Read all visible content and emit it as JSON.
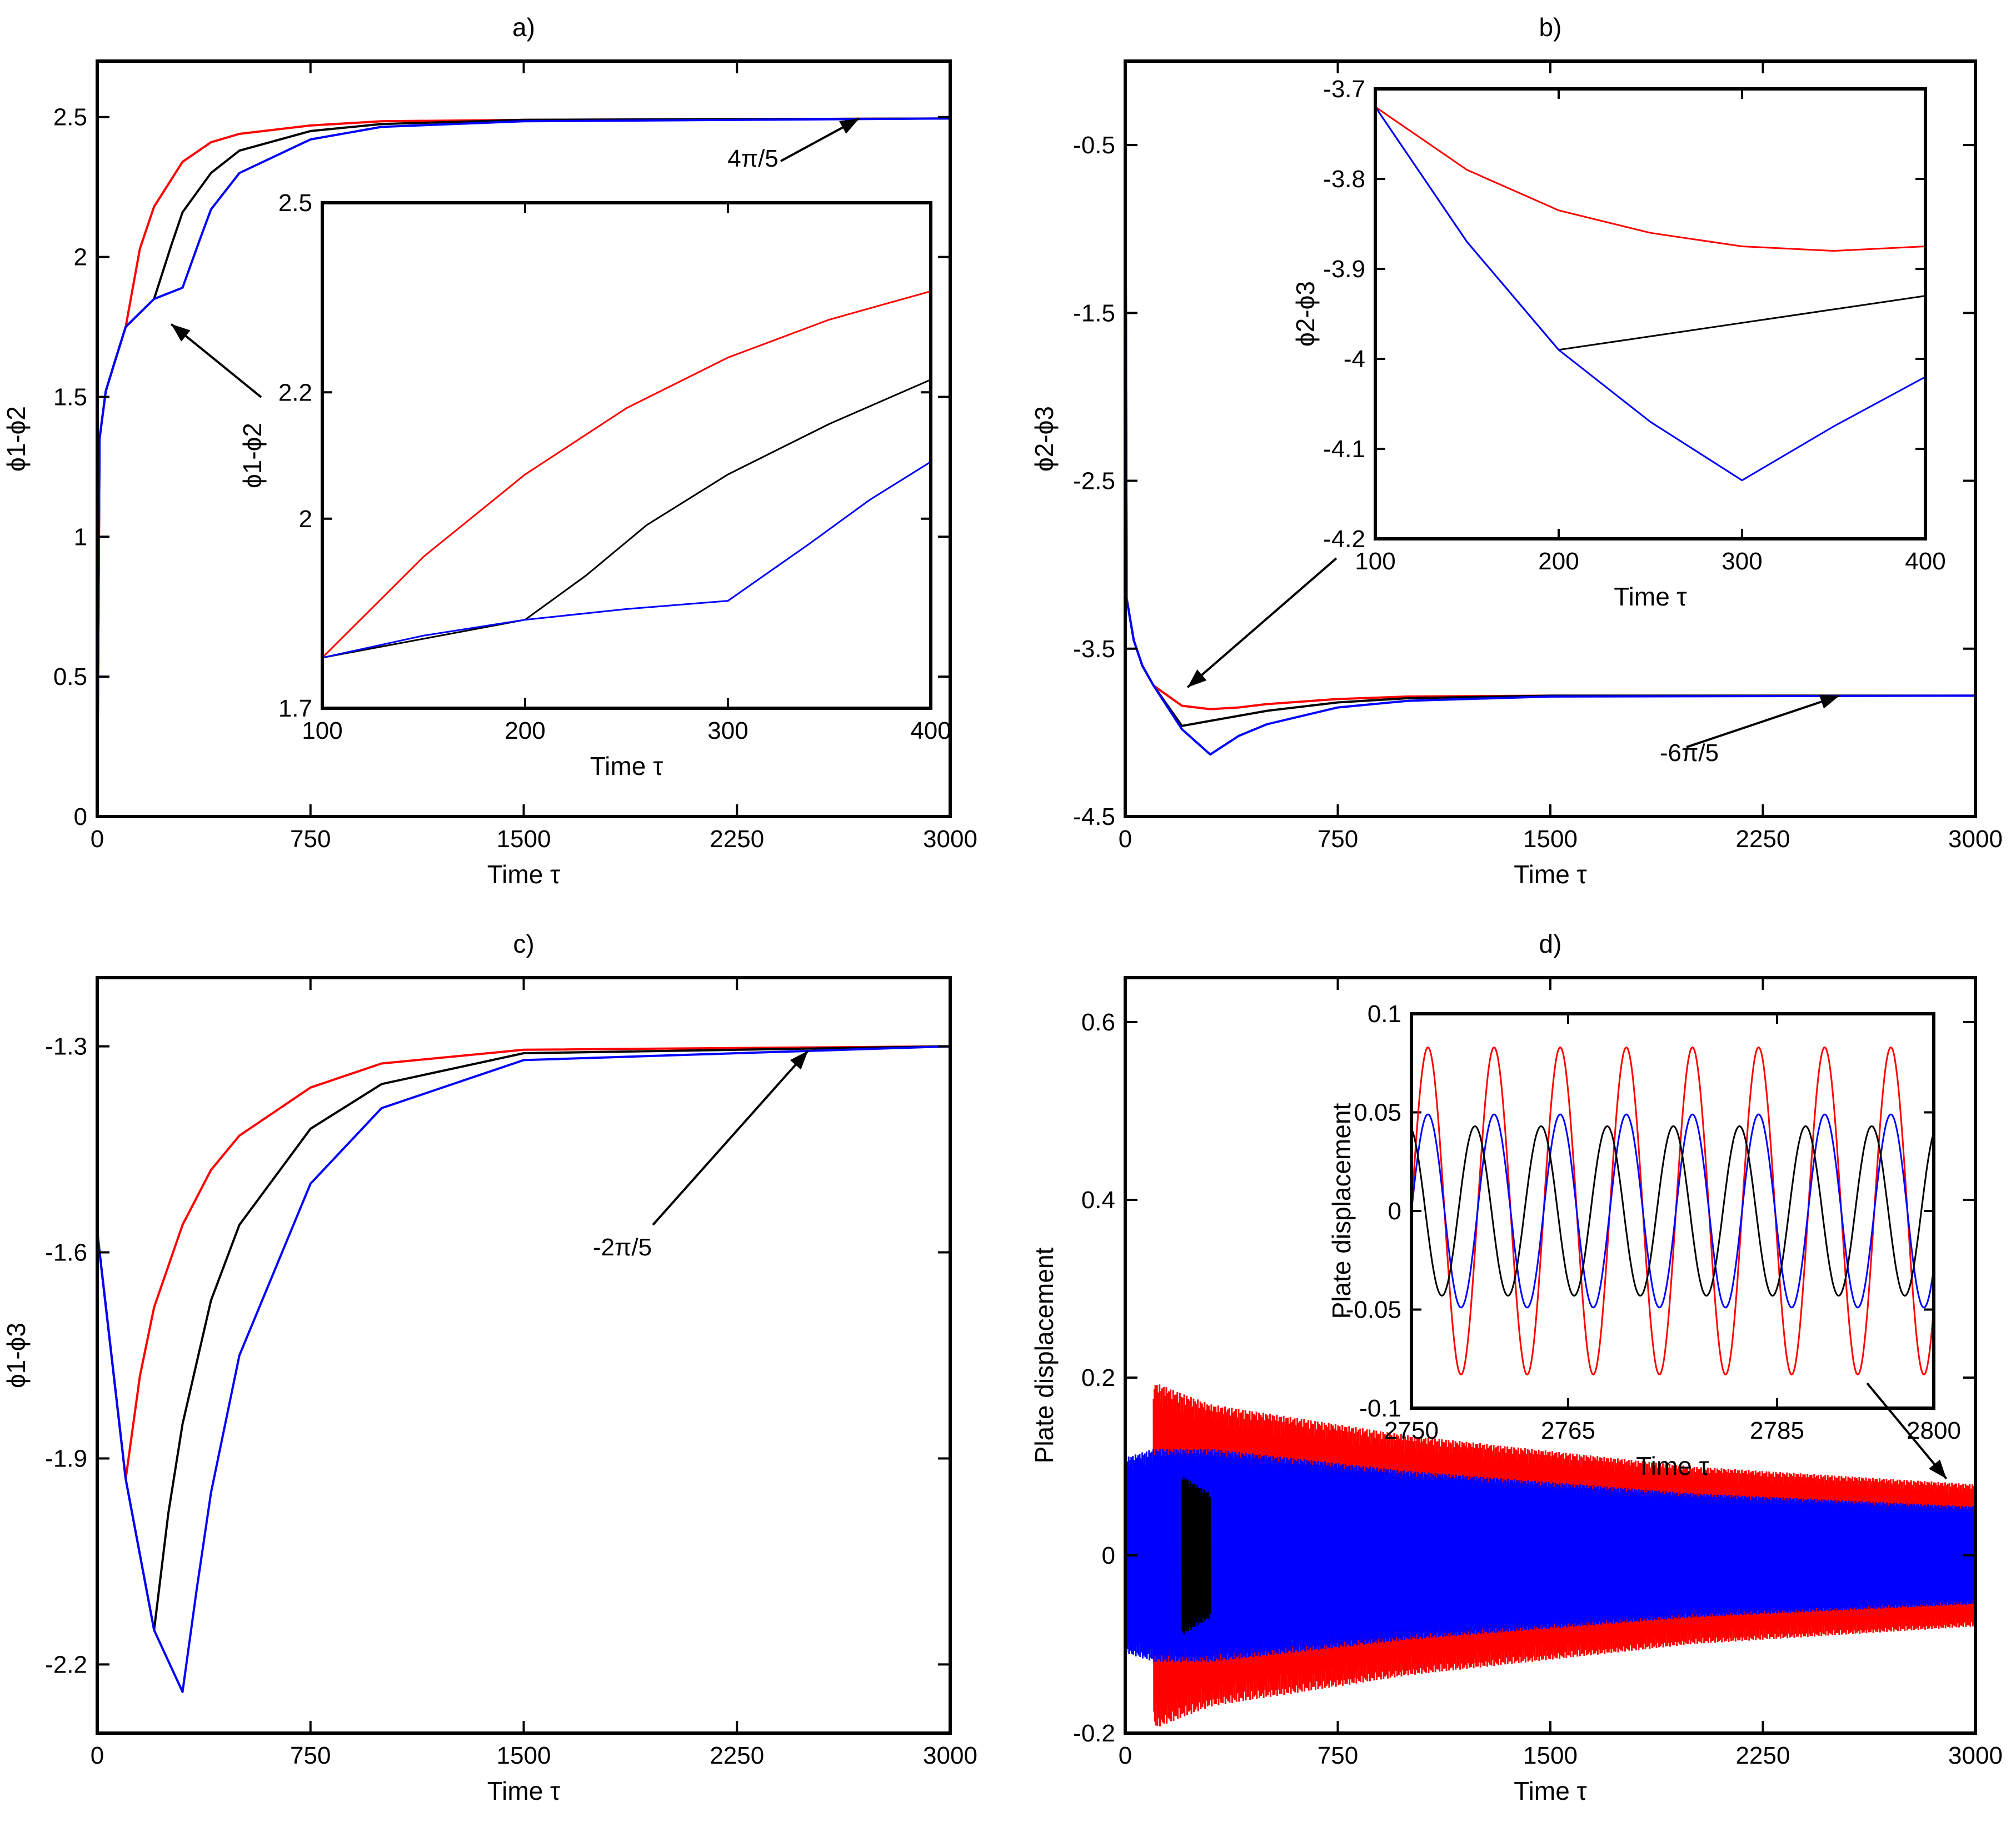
{
  "colors": {
    "red": "#ff0000",
    "black": "#000000",
    "blue": "#0000ff"
  },
  "chart_data": [
    {
      "id": "a",
      "type": "line",
      "title": "a)",
      "xlabel": "Time τ",
      "ylabel": "ϕ1-ϕ2",
      "xlim": [
        0,
        3000
      ],
      "ylim": [
        0,
        2.7
      ],
      "xticks": [
        0,
        750,
        1500,
        2250,
        3000
      ],
      "yticks": [
        0,
        0.5,
        1,
        1.5,
        2,
        2.5
      ],
      "series": [
        {
          "name": "red",
          "color": "#ff0000",
          "points": [
            [
              0,
              0
            ],
            [
              8,
              1.35
            ],
            [
              30,
              1.52
            ],
            [
              60,
              1.62
            ],
            [
              100,
              1.75
            ],
            [
              150,
              2.03
            ],
            [
              200,
              2.18
            ],
            [
              300,
              2.34
            ],
            [
              400,
              2.41
            ],
            [
              500,
              2.44
            ],
            [
              750,
              2.47
            ],
            [
              1000,
              2.485
            ],
            [
              1500,
              2.49
            ],
            [
              3000,
              2.495
            ]
          ]
        },
        {
          "name": "black",
          "color": "#000000",
          "points": [
            [
              0,
              0
            ],
            [
              8,
              1.35
            ],
            [
              30,
              1.52
            ],
            [
              60,
              1.62
            ],
            [
              100,
              1.75
            ],
            [
              200,
              1.85
            ],
            [
              260,
              2.04
            ],
            [
              300,
              2.16
            ],
            [
              400,
              2.3
            ],
            [
              500,
              2.38
            ],
            [
              750,
              2.45
            ],
            [
              1000,
              2.475
            ],
            [
              1500,
              2.49
            ],
            [
              3000,
              2.495
            ]
          ]
        },
        {
          "name": "blue",
          "color": "#0000ff",
          "points": [
            [
              0,
              0
            ],
            [
              8,
              1.35
            ],
            [
              30,
              1.52
            ],
            [
              60,
              1.62
            ],
            [
              100,
              1.75
            ],
            [
              200,
              1.85
            ],
            [
              300,
              1.89
            ],
            [
              360,
              2.06
            ],
            [
              400,
              2.17
            ],
            [
              500,
              2.3
            ],
            [
              750,
              2.42
            ],
            [
              1000,
              2.465
            ],
            [
              1500,
              2.485
            ],
            [
              3000,
              2.495
            ]
          ]
        }
      ],
      "annotations": [
        {
          "text": "4π/5",
          "arrow_to": [
            2680,
            2.495
          ]
        },
        {
          "text": "",
          "arrow_to": [
            260,
            1.78
          ]
        }
      ],
      "inset": {
        "xlabel": "Time τ",
        "ylabel": "ϕ1-ϕ2",
        "xlim": [
          100,
          400
        ],
        "ylim": [
          1.7,
          2.5
        ],
        "xticks": [
          100,
          200,
          300,
          400
        ],
        "yticks": [
          1.7,
          2,
          2.2,
          2.5
        ],
        "series": [
          {
            "name": "red",
            "color": "#ff0000",
            "points": [
              [
                100,
                1.78
              ],
              [
                150,
                1.94
              ],
              [
                200,
                2.07
              ],
              [
                250,
                2.175
              ],
              [
                300,
                2.255
              ],
              [
                350,
                2.315
              ],
              [
                400,
                2.36
              ]
            ]
          },
          {
            "name": "black",
            "color": "#000000",
            "points": [
              [
                100,
                1.78
              ],
              [
                200,
                1.84
              ],
              [
                230,
                1.91
              ],
              [
                260,
                1.99
              ],
              [
                300,
                2.07
              ],
              [
                350,
                2.15
              ],
              [
                400,
                2.22
              ]
            ]
          },
          {
            "name": "blue",
            "color": "#0000ff",
            "points": [
              [
                100,
                1.78
              ],
              [
                150,
                1.815
              ],
              [
                200,
                1.84
              ],
              [
                250,
                1.857
              ],
              [
                300,
                1.87
              ],
              [
                340,
                1.96
              ],
              [
                370,
                2.03
              ],
              [
                400,
                2.09
              ]
            ]
          }
        ]
      }
    },
    {
      "id": "b",
      "type": "line",
      "title": "b)",
      "xlabel": "Time τ",
      "ylabel": "ϕ2-ϕ3",
      "xlim": [
        0,
        3000
      ],
      "ylim": [
        -4.5,
        0
      ],
      "xticks": [
        0,
        750,
        1500,
        2250,
        3000
      ],
      "yticks": [
        -0.5,
        -1.5,
        -2.5,
        -3.5,
        -4.5
      ],
      "series": [
        {
          "name": "red",
          "color": "#ff0000",
          "points": [
            [
              0,
              0
            ],
            [
              5,
              -3.2
            ],
            [
              30,
              -3.45
            ],
            [
              60,
              -3.6
            ],
            [
              100,
              -3.72
            ],
            [
              200,
              -3.84
            ],
            [
              300,
              -3.86
            ],
            [
              400,
              -3.85
            ],
            [
              500,
              -3.83
            ],
            [
              750,
              -3.8
            ],
            [
              1000,
              -3.785
            ],
            [
              1500,
              -3.78
            ],
            [
              3000,
              -3.78
            ]
          ]
        },
        {
          "name": "black",
          "color": "#000000",
          "points": [
            [
              0,
              0
            ],
            [
              5,
              -3.2
            ],
            [
              30,
              -3.45
            ],
            [
              60,
              -3.6
            ],
            [
              100,
              -3.72
            ],
            [
              200,
              -3.96
            ],
            [
              300,
              -3.93
            ],
            [
              400,
              -3.9
            ],
            [
              500,
              -3.87
            ],
            [
              750,
              -3.82
            ],
            [
              1000,
              -3.795
            ],
            [
              1500,
              -3.78
            ],
            [
              3000,
              -3.78
            ]
          ]
        },
        {
          "name": "blue",
          "color": "#0000ff",
          "points": [
            [
              0,
              0
            ],
            [
              5,
              -3.2
            ],
            [
              30,
              -3.45
            ],
            [
              60,
              -3.6
            ],
            [
              100,
              -3.72
            ],
            [
              200,
              -3.98
            ],
            [
              300,
              -4.13
            ],
            [
              400,
              -4.02
            ],
            [
              500,
              -3.95
            ],
            [
              750,
              -3.85
            ],
            [
              1000,
              -3.81
            ],
            [
              1500,
              -3.785
            ],
            [
              3000,
              -3.78
            ]
          ]
        }
      ],
      "annotations": [
        {
          "text": "-6π/5",
          "arrow_to": [
            2520,
            -3.78
          ]
        },
        {
          "text": "",
          "arrow_to": [
            220,
            -3.73
          ]
        }
      ],
      "inset": {
        "xlabel": "Time τ",
        "ylabel": "ϕ2-ϕ3",
        "xlim": [
          100,
          400
        ],
        "ylim": [
          -4.2,
          -3.7
        ],
        "xticks": [
          100,
          200,
          300,
          400
        ],
        "yticks": [
          -4.2,
          -4.1,
          -4,
          -3.9,
          -3.8,
          -3.7
        ],
        "series": [
          {
            "name": "red",
            "color": "#ff0000",
            "points": [
              [
                100,
                -3.72
              ],
              [
                150,
                -3.79
              ],
              [
                200,
                -3.835
              ],
              [
                250,
                -3.86
              ],
              [
                300,
                -3.875
              ],
              [
                350,
                -3.88
              ],
              [
                400,
                -3.875
              ]
            ]
          },
          {
            "name": "black",
            "color": "#000000",
            "points": [
              [
                100,
                -3.72
              ],
              [
                150,
                -3.87
              ],
              [
                200,
                -3.99
              ],
              [
                250,
                -3.975
              ],
              [
                300,
                -3.96
              ],
              [
                350,
                -3.945
              ],
              [
                400,
                -3.93
              ]
            ]
          },
          {
            "name": "blue",
            "color": "#0000ff",
            "points": [
              [
                100,
                -3.72
              ],
              [
                150,
                -3.87
              ],
              [
                200,
                -3.99
              ],
              [
                250,
                -4.07
              ],
              [
                300,
                -4.135
              ],
              [
                350,
                -4.075
              ],
              [
                400,
                -4.02
              ]
            ]
          }
        ]
      }
    },
    {
      "id": "c",
      "type": "line",
      "title": "c)",
      "xlabel": "Time τ",
      "ylabel": "ϕ1-ϕ3",
      "xlim": [
        0,
        3000
      ],
      "ylim": [
        -2.3,
        -1.2
      ],
      "xticks": [
        0,
        750,
        1500,
        2250,
        3000
      ],
      "yticks": [
        -1.3,
        -1.6,
        -1.9,
        -2.2
      ],
      "series": [
        {
          "name": "red",
          "color": "#ff0000",
          "points": [
            [
              0,
              -1.57
            ],
            [
              50,
              -1.75
            ],
            [
              100,
              -1.93
            ],
            [
              150,
              -1.78
            ],
            [
              200,
              -1.68
            ],
            [
              300,
              -1.56
            ],
            [
              400,
              -1.48
            ],
            [
              500,
              -1.43
            ],
            [
              750,
              -1.36
            ],
            [
              1000,
              -1.325
            ],
            [
              1500,
              -1.305
            ],
            [
              3000,
              -1.3
            ]
          ]
        },
        {
          "name": "black",
          "color": "#000000",
          "points": [
            [
              0,
              -1.57
            ],
            [
              50,
              -1.75
            ],
            [
              100,
              -1.93
            ],
            [
              200,
              -2.15
            ],
            [
              250,
              -1.98
            ],
            [
              300,
              -1.85
            ],
            [
              400,
              -1.67
            ],
            [
              500,
              -1.56
            ],
            [
              750,
              -1.42
            ],
            [
              1000,
              -1.355
            ],
            [
              1500,
              -1.31
            ],
            [
              3000,
              -1.3
            ]
          ]
        },
        {
          "name": "blue",
          "color": "#0000ff",
          "points": [
            [
              0,
              -1.57
            ],
            [
              50,
              -1.75
            ],
            [
              100,
              -1.93
            ],
            [
              200,
              -2.15
            ],
            [
              300,
              -2.24
            ],
            [
              350,
              -2.09
            ],
            [
              400,
              -1.95
            ],
            [
              500,
              -1.75
            ],
            [
              750,
              -1.5
            ],
            [
              1000,
              -1.39
            ],
            [
              1500,
              -1.32
            ],
            [
              3000,
              -1.3
            ]
          ]
        }
      ],
      "annotations": [
        {
          "text": "-2π/5",
          "arrow_to": [
            2500,
            -1.3
          ]
        }
      ]
    },
    {
      "id": "d",
      "type": "line",
      "title": "d)",
      "xlabel": "Time τ",
      "ylabel": "Plate displacement",
      "xlim": [
        0,
        3000
      ],
      "ylim": [
        -0.2,
        0.65
      ],
      "xticks": [
        0,
        750,
        1500,
        2250,
        3000
      ],
      "yticks": [
        -0.2,
        0,
        0.2,
        0.4,
        0.6
      ],
      "envelopes": [
        {
          "name": "red",
          "color": "#ff0000",
          "points": [
            [
              100,
              0.195
            ],
            [
              300,
              0.17
            ],
            [
              1000,
              0.135
            ],
            [
              2000,
              0.1
            ],
            [
              3000,
              0.08
            ]
          ]
        },
        {
          "name": "blue",
          "color": "#0000ff",
          "points": [
            [
              0,
              0.11
            ],
            [
              100,
              0.12
            ],
            [
              300,
              0.12
            ],
            [
              1000,
              0.095
            ],
            [
              2000,
              0.07
            ],
            [
              3000,
              0.055
            ]
          ]
        },
        {
          "name": "black",
          "color": "#000000",
          "points": [
            [
              200,
              0.09
            ],
            [
              300,
              0.07
            ]
          ]
        }
      ],
      "annotations": [
        {
          "text": "",
          "arrow_to": [
            2780,
            0.08
          ]
        }
      ],
      "inset": {
        "xlabel": "Time τ",
        "ylabel": "Plate displacement",
        "xlim": [
          2750,
          2800
        ],
        "ylim": [
          -0.1,
          0.1
        ],
        "xticks": [
          2750,
          2765,
          2785,
          2800
        ],
        "yticks": [
          -0.1,
          -0.05,
          0,
          0.05,
          0.1
        ],
        "oscillations": [
          {
            "name": "red",
            "color": "#ff0000",
            "amplitude": 0.083,
            "period": 6.33,
            "phase_x": 2750
          },
          {
            "name": "blue",
            "color": "#0000ff",
            "amplitude": 0.049,
            "period": 6.33,
            "phase_x": 2750
          },
          {
            "name": "black",
            "color": "#000000",
            "amplitude": 0.043,
            "period": 6.33,
            "phase_x": 2754.5
          }
        ]
      }
    }
  ]
}
